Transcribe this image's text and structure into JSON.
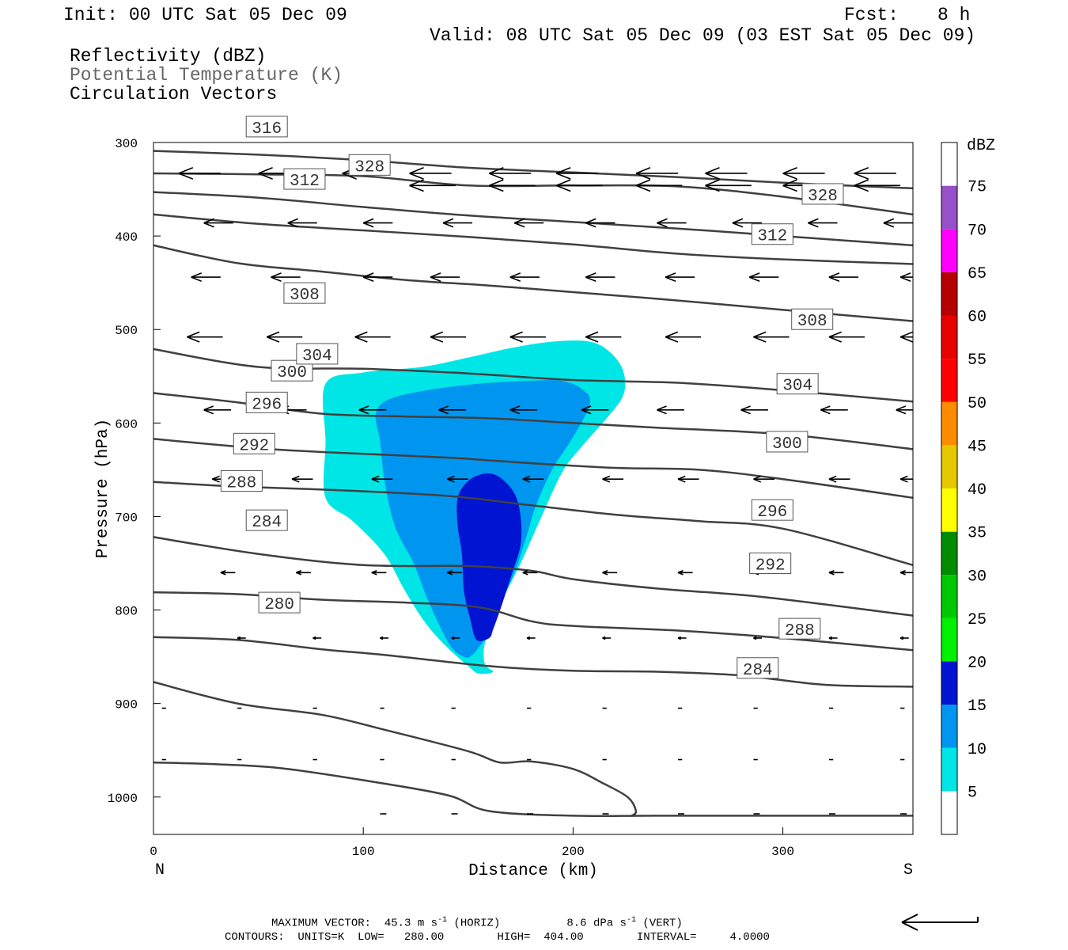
{
  "header": {
    "init": "Init: 00 UTC Sat 05 Dec 09",
    "fcst_label": "Fcst:",
    "fcst_value": "8 h",
    "valid": "Valid: 08 UTC Sat 05 Dec 09 (03 EST Sat 05 Dec 09)",
    "field1": "Reflectivity (dBZ)",
    "field2": "Potential Temperature (K)",
    "field3": "Circulation Vectors"
  },
  "footer": {
    "max_vector_label": "MAXIMUM VECTOR:",
    "horiz_value": "45.3",
    "horiz_unit": "m s",
    "horiz_exp": "-1",
    "horiz_tag": "(HORIZ)",
    "vert_value": "8.6",
    "vert_unit": "dPa s",
    "vert_exp": "-1",
    "vert_tag": "(VERT)",
    "contours": "CONTOURS:  UNITS=K  LOW=   280.00        HIGH=  404.00        INTERVAL=     4.0000"
  },
  "chart_data": {
    "type": "contour",
    "xlabel": "Distance (km)",
    "ylabel": "Pressure (hPa)",
    "xlim": [
      0,
      362
    ],
    "ylim": [
      300,
      1040
    ],
    "x_ticks": [
      0,
      100,
      200,
      300
    ],
    "y_ticks": [
      300,
      400,
      500,
      600,
      700,
      800,
      900,
      1000
    ],
    "left_end_label": "N",
    "right_end_label": "S",
    "colorbar": {
      "unit": "dBZ",
      "levels": [
        5,
        10,
        15,
        20,
        25,
        30,
        35,
        40,
        45,
        50,
        55,
        60,
        65,
        70,
        75
      ],
      "colors": [
        "#ffffff",
        "#00e6e6",
        "#0096f0",
        "#0014d2",
        "#00f000",
        "#00c800",
        "#008c00",
        "#ffff00",
        "#e6c800",
        "#ff8c00",
        "#ff0000",
        "#e60000",
        "#b40000",
        "#ff00ff",
        "#9650c8",
        "#ffffff"
      ]
    },
    "reflectivity_regions": [
      {
        "level": 5,
        "color": "#00e6e6",
        "polygon": [
          [
            82,
            558
          ],
          [
            100,
            546
          ],
          [
            128,
            540
          ],
          [
            150,
            530
          ],
          [
            170,
            520
          ],
          [
            190,
            513
          ],
          [
            208,
            513
          ],
          [
            218,
            525
          ],
          [
            224,
            545
          ],
          [
            224,
            570
          ],
          [
            216,
            595
          ],
          [
            205,
            623
          ],
          [
            195,
            652
          ],
          [
            185,
            700
          ],
          [
            175,
            750
          ],
          [
            164,
            800
          ],
          [
            158,
            835
          ],
          [
            158,
            858
          ],
          [
            162,
            866
          ],
          [
            155,
            868
          ],
          [
            150,
            860
          ],
          [
            140,
            840
          ],
          [
            130,
            815
          ],
          [
            120,
            780
          ],
          [
            110,
            740
          ],
          [
            95,
            705
          ],
          [
            82,
            680
          ],
          [
            82,
            620
          ]
        ]
      },
      {
        "level": 10,
        "color": "#0096f0",
        "polygon": [
          [
            106,
            590
          ],
          [
            112,
            575
          ],
          [
            130,
            565
          ],
          [
            155,
            558
          ],
          [
            178,
            555
          ],
          [
            195,
            555
          ],
          [
            205,
            565
          ],
          [
            208,
            580
          ],
          [
            200,
            615
          ],
          [
            190,
            650
          ],
          [
            182,
            690
          ],
          [
            178,
            720
          ],
          [
            172,
            760
          ],
          [
            164,
            800
          ],
          [
            158,
            830
          ],
          [
            152,
            848
          ],
          [
            148,
            850
          ],
          [
            142,
            840
          ],
          [
            136,
            815
          ],
          [
            130,
            785
          ],
          [
            124,
            750
          ],
          [
            115,
            710
          ],
          [
            110,
            660
          ],
          [
            108,
            620
          ]
        ]
      },
      {
        "level": 15,
        "color": "#0014d2",
        "polygon": [
          [
            145,
            680
          ],
          [
            150,
            662
          ],
          [
            158,
            654
          ],
          [
            165,
            658
          ],
          [
            172,
            675
          ],
          [
            175,
            700
          ],
          [
            175,
            730
          ],
          [
            171,
            760
          ],
          [
            166,
            795
          ],
          [
            162,
            820
          ],
          [
            160,
            830
          ],
          [
            154,
            832
          ],
          [
            151,
            810
          ],
          [
            148,
            780
          ],
          [
            147,
            740
          ],
          [
            145,
            710
          ]
        ]
      }
    ],
    "theta_contours": [
      {
        "value": 280,
        "labels": [
          [
            60,
            792
          ]
        ],
        "points": [
          [
            0,
            877
          ],
          [
            40,
            900
          ],
          [
            80,
            912
          ],
          [
            110,
            928
          ],
          [
            150,
            951
          ],
          [
            165,
            963
          ],
          [
            180,
            962
          ],
          [
            200,
            970
          ],
          [
            214,
            985
          ],
          [
            226,
            1000
          ],
          [
            230,
            1015
          ],
          [
            228,
            1020
          ]
        ]
      },
      {
        "value": 284,
        "labels": [
          [
            54,
            704
          ],
          [
            288,
            862
          ]
        ],
        "points": [
          [
            0,
            829
          ],
          [
            40,
            832
          ],
          [
            80,
            842
          ],
          [
            110,
            848
          ],
          [
            160,
            860
          ],
          [
            200,
            865
          ],
          [
            240,
            866
          ],
          [
            280,
            870
          ],
          [
            320,
            880
          ],
          [
            362,
            882
          ]
        ]
      },
      {
        "value": 288,
        "labels": [
          [
            42,
            662
          ],
          [
            308,
            820
          ]
        ],
        "points": [
          [
            0,
            781
          ],
          [
            40,
            783
          ],
          [
            80,
            789
          ],
          [
            120,
            792
          ],
          [
            155,
            797
          ],
          [
            180,
            812
          ],
          [
            200,
            817
          ],
          [
            250,
            822
          ],
          [
            300,
            830
          ],
          [
            362,
            843
          ]
        ]
      },
      {
        "value": 292,
        "labels": [
          [
            48,
            622
          ],
          [
            294,
            750
          ]
        ],
        "points": [
          [
            0,
            722
          ],
          [
            50,
            740
          ],
          [
            100,
            752
          ],
          [
            150,
            753
          ],
          [
            180,
            758
          ],
          [
            200,
            767
          ],
          [
            240,
            777
          ],
          [
            290,
            786
          ],
          [
            362,
            806
          ]
        ]
      },
      {
        "value": 296,
        "labels": [
          [
            54,
            578
          ],
          [
            295,
            693
          ]
        ],
        "points": [
          [
            0,
            663
          ],
          [
            40,
            668
          ],
          [
            90,
            672
          ],
          [
            140,
            678
          ],
          [
            180,
            688
          ],
          [
            220,
            698
          ],
          [
            260,
            705
          ],
          [
            300,
            713
          ],
          [
            362,
            752
          ]
        ]
      },
      {
        "value": 300,
        "labels": [
          [
            66,
            544
          ],
          [
            302,
            620
          ]
        ],
        "points": [
          [
            0,
            617
          ],
          [
            50,
            627
          ],
          [
            90,
            632
          ],
          [
            140,
            637
          ],
          [
            180,
            643
          ],
          [
            220,
            648
          ],
          [
            260,
            650
          ],
          [
            300,
            660
          ],
          [
            362,
            680
          ]
        ]
      },
      {
        "value": 304,
        "labels": [
          [
            78,
            526
          ],
          [
            307,
            558
          ]
        ],
        "points": [
          [
            0,
            568
          ],
          [
            40,
            578
          ],
          [
            80,
            590
          ],
          [
            120,
            593
          ],
          [
            160,
            595
          ],
          [
            200,
            600
          ],
          [
            240,
            605
          ],
          [
            300,
            612
          ],
          [
            362,
            628
          ]
        ]
      },
      {
        "value": 308,
        "labels": [
          [
            72,
            461
          ],
          [
            314,
            489
          ]
        ],
        "points": [
          [
            0,
            521
          ],
          [
            50,
            540
          ],
          [
            100,
            542
          ],
          [
            150,
            547
          ],
          [
            200,
            554
          ],
          [
            250,
            557
          ],
          [
            300,
            565
          ],
          [
            362,
            577
          ]
        ]
      },
      {
        "value": 312,
        "labels": [
          [
            72,
            339
          ],
          [
            295,
            398
          ]
        ],
        "points": [
          [
            0,
            410
          ],
          [
            40,
            429
          ],
          [
            80,
            438
          ],
          [
            120,
            447
          ],
          [
            160,
            453
          ],
          [
            200,
            460
          ],
          [
            250,
            469
          ],
          [
            300,
            479
          ],
          [
            362,
            491
          ]
        ]
      },
      {
        "value": 316,
        "labels": [
          [
            54,
            283
          ]
        ],
        "points": [
          [
            0,
            377
          ],
          [
            50,
            387
          ],
          [
            100,
            394
          ],
          [
            150,
            401
          ],
          [
            200,
            409
          ],
          [
            250,
            419
          ],
          [
            300,
            425
          ],
          [
            362,
            430
          ]
        ]
      },
      {
        "value": 320,
        "labels": [],
        "points": [
          [
            0,
            353
          ],
          [
            50,
            359
          ],
          [
            100,
            369
          ],
          [
            150,
            378
          ],
          [
            200,
            385
          ],
          [
            250,
            392
          ],
          [
            300,
            400
          ],
          [
            362,
            410
          ]
        ]
      },
      {
        "value": 324,
        "labels": [],
        "points": [
          [
            0,
            333
          ],
          [
            50,
            334
          ],
          [
            100,
            336
          ],
          [
            150,
            346
          ],
          [
            200,
            346
          ],
          [
            250,
            347
          ],
          [
            300,
            358
          ],
          [
            362,
            377
          ]
        ]
      },
      {
        "value": 328,
        "labels": [
          [
            103,
            324
          ],
          [
            319,
            355
          ]
        ],
        "points": [
          [
            0,
            309
          ],
          [
            50,
            313
          ],
          [
            100,
            319
          ],
          [
            150,
            327
          ],
          [
            200,
            332
          ],
          [
            250,
            337
          ],
          [
            300,
            343
          ],
          [
            362,
            349
          ]
        ]
      }
    ],
    "bottom_contour": {
      "points": [
        [
          0,
          963
        ],
        [
          30,
          965
        ],
        [
          60,
          969
        ],
        [
          100,
          982
        ],
        [
          140,
          998
        ],
        [
          160,
          1015
        ],
        [
          200,
          1020
        ],
        [
          240,
          1020
        ],
        [
          300,
          1020
        ],
        [
          362,
          1020
        ]
      ]
    },
    "vector_rows": [
      {
        "p": 333,
        "xs": [
          12,
          50,
          90,
          122,
          160,
          192,
          230,
          263,
          300,
          334
        ],
        "len": 20
      },
      {
        "p": 346,
        "xs": [
          122,
          160,
          192,
          230,
          263,
          300,
          334
        ],
        "len": 22
      },
      {
        "p": 386,
        "xs": [
          24,
          64,
          100,
          138,
          172,
          206,
          240,
          276,
          312,
          348
        ],
        "len": 14
      },
      {
        "p": 444,
        "xs": [
          18,
          56,
          100,
          132,
          170,
          206,
          244,
          284,
          322,
          356
        ],
        "len": 14
      },
      {
        "p": 508,
        "xs": [
          16,
          54,
          96,
          132,
          170,
          206,
          244,
          286,
          322,
          356
        ],
        "len": 17
      },
      {
        "p": 586,
        "xs": [
          24,
          60,
          98,
          136,
          170,
          204,
          240,
          280,
          318,
          354
        ],
        "len": 13
      },
      {
        "p": 660,
        "xs": [
          28,
          66,
          104,
          140,
          176,
          214,
          250,
          286,
          322,
          356
        ],
        "len": 10
      },
      {
        "p": 760,
        "xs": [
          32,
          68,
          104,
          140,
          176,
          214,
          250,
          286,
          322,
          356
        ],
        "len": 7
      },
      {
        "p": 830,
        "xs": [
          40,
          76,
          108,
          142,
          178,
          214,
          250,
          286,
          322,
          356
        ],
        "len": 4
      },
      {
        "p": 905,
        "xs": [
          4,
          40,
          76,
          108,
          142,
          178,
          214,
          250,
          286,
          322,
          356
        ],
        "len": 2
      },
      {
        "p": 960,
        "xs": [
          4,
          40,
          76,
          108,
          142,
          178,
          214,
          250,
          286,
          322,
          356
        ],
        "len": 2
      },
      {
        "p": 1018,
        "xs": [
          108,
          142,
          178,
          214,
          250,
          286,
          322,
          356
        ],
        "len": 3
      }
    ],
    "reference_vector_arrow": "leftward"
  }
}
